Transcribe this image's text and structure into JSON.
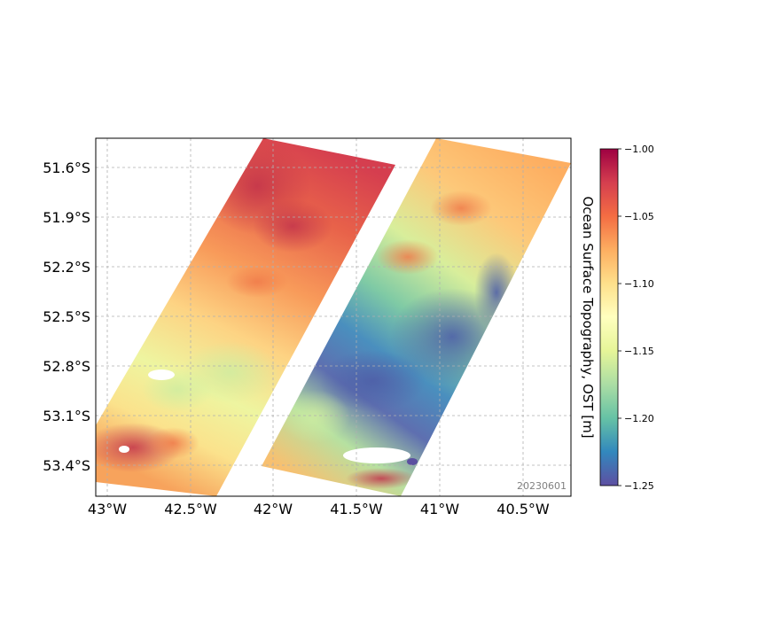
{
  "map": {
    "date_label": "20230601",
    "lat_labels": [
      "51.6°S",
      "51.9°S",
      "52.2°S",
      "52.5°S",
      "52.8°S",
      "53.1°S",
      "53.4°S"
    ],
    "lon_labels": [
      "43°W",
      "42.5°W",
      "42°W",
      "41.5°W",
      "41°W",
      "40.5°W"
    ],
    "gridlines": true
  },
  "colorbar": {
    "title": "Ocean Surface Topography, OST [m]",
    "tick_labels": [
      "−1.00",
      "−1.05",
      "−1.10",
      "−1.15",
      "−1.20",
      "−1.25"
    ],
    "vmin": -1.25,
    "vmax": -1.0,
    "colormap": "Spectral",
    "colors": [
      "#9e0142",
      "#d53e4f",
      "#f46d43",
      "#fdae61",
      "#fee08b",
      "#ffffbf",
      "#e6f598",
      "#abdda4",
      "#66c2a5",
      "#3288bd",
      "#5e4fa2"
    ]
  }
}
